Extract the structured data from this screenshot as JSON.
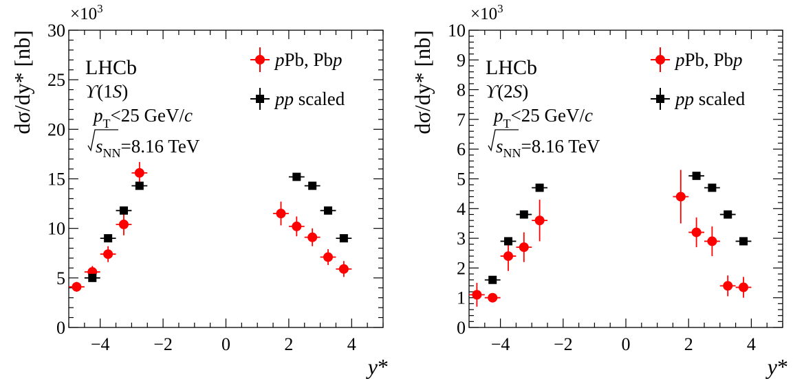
{
  "chart_data": [
    {
      "type": "scatter",
      "panel": "left",
      "exponent_label": "×10",
      "exponent_power": "3",
      "ylabel": "dσ/dy* [nb]",
      "xlabel": "y*",
      "xlim": [
        -5,
        5
      ],
      "ylim": [
        0,
        30
      ],
      "x_ticks": [
        "−4",
        "−2",
        "0",
        "2",
        "4"
      ],
      "y_ticks": [
        "0",
        "5",
        "10",
        "15",
        "20",
        "25",
        "30"
      ],
      "annotations": {
        "experiment": "LHCb",
        "state": "ϒ(1S)",
        "pt_cut": "p_T<25 GeV/c",
        "energy": "√s_NN=8.16 TeV"
      },
      "legend": {
        "placement": "top-right",
        "entries": [
          "pPb, Pbp",
          "pp scaled"
        ]
      },
      "series": [
        {
          "name": "pPb, Pbp",
          "marker": "circle",
          "color": "#ff0000",
          "points": [
            {
              "x": -4.75,
              "y": 4.1,
              "err": 0.5
            },
            {
              "x": -4.25,
              "y": 5.6,
              "err": 0.6
            },
            {
              "x": -3.75,
              "y": 7.4,
              "err": 0.8
            },
            {
              "x": -3.25,
              "y": 10.4,
              "err": 1.1
            },
            {
              "x": -2.75,
              "y": 15.6,
              "err": 1.1
            },
            {
              "x": 1.75,
              "y": 11.5,
              "err": 1.2
            },
            {
              "x": 2.25,
              "y": 10.2,
              "err": 1.0
            },
            {
              "x": 2.75,
              "y": 9.1,
              "err": 0.9
            },
            {
              "x": 3.25,
              "y": 7.1,
              "err": 0.8
            },
            {
              "x": 3.75,
              "y": 5.9,
              "err": 0.8
            }
          ]
        },
        {
          "name": "pp scaled",
          "marker": "square",
          "color": "#000000",
          "points": [
            {
              "x": -4.25,
              "y": 5.0,
              "err": 0.3
            },
            {
              "x": -3.75,
              "y": 9.0,
              "err": 0.3
            },
            {
              "x": -3.25,
              "y": 11.8,
              "err": 0.3
            },
            {
              "x": -2.75,
              "y": 14.3,
              "err": 0.3
            },
            {
              "x": 2.25,
              "y": 15.2,
              "err": 0.3
            },
            {
              "x": 2.75,
              "y": 14.3,
              "err": 0.3
            },
            {
              "x": 3.25,
              "y": 11.8,
              "err": 0.3
            },
            {
              "x": 3.75,
              "y": 9.0,
              "err": 0.3
            }
          ]
        }
      ]
    },
    {
      "type": "scatter",
      "panel": "right",
      "exponent_label": "×10",
      "exponent_power": "3",
      "ylabel": "dσ/dy* [nb]",
      "xlabel": "y*",
      "xlim": [
        -5,
        5
      ],
      "ylim": [
        0,
        10
      ],
      "x_ticks": [
        "−4",
        "−2",
        "0",
        "2",
        "4"
      ],
      "y_ticks": [
        "0",
        "1",
        "2",
        "3",
        "4",
        "5",
        "6",
        "7",
        "8",
        "9",
        "10"
      ],
      "annotations": {
        "experiment": "LHCb",
        "state": "ϒ(2S)",
        "pt_cut": "p_T<25 GeV/c",
        "energy": "√s_NN=8.16 TeV"
      },
      "legend": {
        "placement": "top-right",
        "entries": [
          "pPb, Pbp",
          "pp scaled"
        ]
      },
      "series": [
        {
          "name": "pPb, Pbp",
          "marker": "circle",
          "color": "#ff0000",
          "points": [
            {
              "x": -4.75,
              "y": 1.1,
              "err": 0.4
            },
            {
              "x": -4.25,
              "y": 1.0,
              "err": 0.15
            },
            {
              "x": -3.75,
              "y": 2.4,
              "err": 0.5
            },
            {
              "x": -3.25,
              "y": 2.7,
              "err": 0.5
            },
            {
              "x": -2.75,
              "y": 3.6,
              "err": 0.7
            },
            {
              "x": 1.75,
              "y": 4.4,
              "err": 0.9
            },
            {
              "x": 2.25,
              "y": 3.2,
              "err": 0.5
            },
            {
              "x": 2.75,
              "y": 2.9,
              "err": 0.5
            },
            {
              "x": 3.25,
              "y": 1.4,
              "err": 0.35
            },
            {
              "x": 3.75,
              "y": 1.35,
              "err": 0.35
            }
          ]
        },
        {
          "name": "pp scaled",
          "marker": "square",
          "color": "#000000",
          "points": [
            {
              "x": -4.25,
              "y": 1.6,
              "err": 0.08
            },
            {
              "x": -3.75,
              "y": 2.9,
              "err": 0.08
            },
            {
              "x": -3.25,
              "y": 3.8,
              "err": 0.08
            },
            {
              "x": -2.75,
              "y": 4.7,
              "err": 0.08
            },
            {
              "x": 2.25,
              "y": 5.1,
              "err": 0.08
            },
            {
              "x": 2.75,
              "y": 4.7,
              "err": 0.08
            },
            {
              "x": 3.25,
              "y": 3.8,
              "err": 0.08
            },
            {
              "x": 3.75,
              "y": 2.9,
              "err": 0.08
            }
          ]
        }
      ]
    }
  ]
}
